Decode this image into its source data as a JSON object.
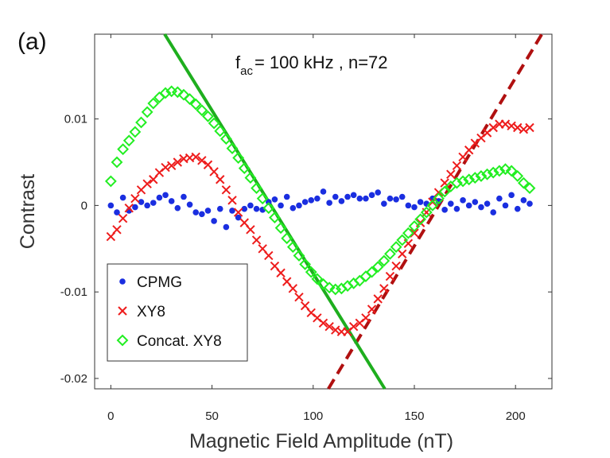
{
  "chart_data": {
    "type": "scatter",
    "panel_label": "(a)",
    "annotation": {
      "f": "f",
      "sub": "ac",
      "rest": "= 100 kHz , n=72"
    },
    "xlabel": "Magnetic Field Amplitude (nT)",
    "ylabel": "Contrast",
    "xlim": [
      -8,
      218
    ],
    "ylim": [
      -0.0212,
      0.0198
    ],
    "xticks": [
      0,
      50,
      100,
      150,
      200
    ],
    "xtick_labels": [
      "0",
      "50",
      "100",
      "150",
      "200"
    ],
    "yticks": [
      -0.02,
      -0.01,
      0,
      0.01
    ],
    "ytick_labels": [
      "-0.02",
      "-0.01",
      "0",
      "0.01"
    ],
    "legend": {
      "position": "lower-left",
      "entries": [
        "CPMG",
        "XY8",
        "Concat. XY8"
      ]
    },
    "series": [
      {
        "name": "CPMG",
        "marker": "dot",
        "color": "#1a2ee0",
        "x": [
          0,
          3,
          6,
          9,
          12,
          15,
          18,
          21,
          24,
          27,
          30,
          33,
          36,
          39,
          42,
          45,
          48,
          51,
          54,
          57,
          60,
          63,
          66,
          69,
          72,
          75,
          78,
          81,
          84,
          87,
          90,
          93,
          96,
          99,
          102,
          105,
          108,
          111,
          114,
          117,
          120,
          123,
          126,
          129,
          132,
          135,
          138,
          141,
          144,
          147,
          150,
          153,
          156,
          159,
          162,
          165,
          168,
          171,
          174,
          177,
          180,
          183,
          186,
          189,
          192,
          195,
          198,
          201,
          204,
          207
        ],
        "y": [
          0.0,
          -0.0008,
          0.0009,
          -0.0006,
          -0.0002,
          0.0004,
          0.0,
          0.0003,
          0.0009,
          0.0012,
          0.0005,
          -0.0003,
          0.001,
          0.0001,
          -0.0008,
          -0.001,
          -0.0006,
          -0.0018,
          -0.0004,
          -0.0025,
          -0.0006,
          -0.0014,
          -0.0004,
          0.0,
          -0.0004,
          -0.0005,
          0.0004,
          0.0007,
          0.0,
          0.001,
          -0.0003,
          0.0,
          0.0004,
          0.0006,
          0.0008,
          0.0016,
          0.0003,
          0.001,
          0.0005,
          0.001,
          0.0012,
          0.0008,
          0.0008,
          0.0012,
          0.0015,
          0.0002,
          0.0008,
          0.0007,
          0.001,
          0.0,
          -0.0002,
          0.0004,
          0.0002,
          0.0008,
          0.0005,
          -0.0005,
          0.0002,
          -0.0004,
          0.0006,
          0.0,
          0.0004,
          -0.0002,
          0.0002,
          -0.0008,
          0.0008,
          0.0,
          0.0012,
          -0.0004,
          0.0006,
          0.0002
        ]
      },
      {
        "name": "XY8",
        "marker": "x",
        "color": "#ee1c1c",
        "x": [
          0,
          3,
          6,
          9,
          12,
          15,
          18,
          21,
          24,
          27,
          30,
          33,
          36,
          39,
          42,
          45,
          48,
          51,
          54,
          57,
          60,
          63,
          66,
          69,
          72,
          75,
          78,
          81,
          84,
          87,
          90,
          93,
          96,
          99,
          102,
          105,
          108,
          111,
          114,
          117,
          120,
          123,
          126,
          129,
          132,
          135,
          138,
          141,
          144,
          147,
          150,
          153,
          156,
          159,
          162,
          165,
          168,
          171,
          174,
          177,
          180,
          183,
          186,
          189,
          192,
          195,
          198,
          201,
          204,
          207
        ],
        "y": [
          -0.0036,
          -0.0028,
          -0.0015,
          -0.0003,
          0.0008,
          0.0018,
          0.0025,
          0.003,
          0.0038,
          0.0044,
          0.0046,
          0.005,
          0.0054,
          0.0055,
          0.0056,
          0.0052,
          0.0047,
          0.0039,
          0.003,
          0.0018,
          0.0006,
          -0.0008,
          -0.002,
          -0.0028,
          -0.004,
          -0.005,
          -0.0058,
          -0.007,
          -0.0078,
          -0.0088,
          -0.0096,
          -0.0106,
          -0.0116,
          -0.0124,
          -0.013,
          -0.0136,
          -0.014,
          -0.0144,
          -0.0146,
          -0.0146,
          -0.014,
          -0.0136,
          -0.013,
          -0.012,
          -0.0108,
          -0.0096,
          -0.0082,
          -0.007,
          -0.0056,
          -0.0044,
          -0.0032,
          -0.002,
          -0.0008,
          0.0004,
          0.0015,
          0.0026,
          0.0036,
          0.0046,
          0.0056,
          0.0064,
          0.0072,
          0.0078,
          0.0084,
          0.009,
          0.0094,
          0.0094,
          0.0092,
          0.009,
          0.0088,
          0.009
        ]
      },
      {
        "name": "Concat. XY8",
        "marker": "diamond",
        "color": "#22ee22",
        "x": [
          0,
          3,
          6,
          9,
          12,
          15,
          18,
          21,
          24,
          27,
          30,
          33,
          36,
          39,
          42,
          45,
          48,
          51,
          54,
          57,
          60,
          63,
          66,
          69,
          72,
          75,
          78,
          81,
          84,
          87,
          90,
          93,
          96,
          99,
          102,
          105,
          108,
          111,
          114,
          117,
          120,
          123,
          126,
          129,
          132,
          135,
          138,
          141,
          144,
          147,
          150,
          153,
          156,
          159,
          162,
          165,
          168,
          171,
          174,
          177,
          180,
          183,
          186,
          189,
          192,
          195,
          198,
          201,
          204,
          207
        ],
        "y": [
          0.0028,
          0.005,
          0.0065,
          0.0075,
          0.0085,
          0.0096,
          0.0108,
          0.0118,
          0.0125,
          0.013,
          0.0132,
          0.0131,
          0.0128,
          0.0123,
          0.0117,
          0.011,
          0.0103,
          0.0095,
          0.0086,
          0.0077,
          0.0066,
          0.0055,
          0.0043,
          0.0032,
          0.002,
          0.0008,
          -0.0003,
          -0.0014,
          -0.0026,
          -0.0038,
          -0.0048,
          -0.0058,
          -0.0068,
          -0.0077,
          -0.0085,
          -0.0091,
          -0.0095,
          -0.0097,
          -0.0096,
          -0.0093,
          -0.009,
          -0.0087,
          -0.0082,
          -0.0077,
          -0.0071,
          -0.0064,
          -0.0056,
          -0.0048,
          -0.004,
          -0.0032,
          -0.0024,
          -0.0016,
          -0.0008,
          0.0,
          0.0008,
          0.0016,
          0.0022,
          0.0026,
          0.0028,
          0.003,
          0.0032,
          0.0034,
          0.0036,
          0.0038,
          0.004,
          0.0042,
          0.004,
          0.0034,
          0.0026,
          0.002
        ]
      }
    ],
    "fit_lines": [
      {
        "name": "XY8 linear fit",
        "style": "dashed",
        "color": "#b01010",
        "x": [
          107.5,
          213
        ],
        "y": [
          -0.0212,
          0.0198
        ]
      },
      {
        "name": "Concat. XY8 linear fit",
        "style": "solid",
        "color": "#1eae1e",
        "x": [
          26.6,
          135.4
        ],
        "y": [
          0.0198,
          -0.0212
        ]
      }
    ]
  }
}
